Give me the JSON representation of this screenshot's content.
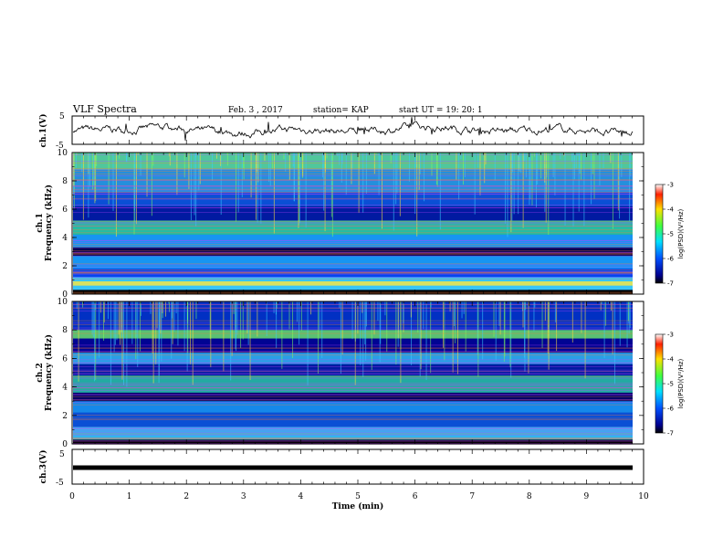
{
  "header": {
    "title": "VLF Spectra",
    "date": "Feb. 3 , 2017",
    "station": "station= KAP",
    "start": "start UT = 19: 20: 1"
  },
  "chart_data": [
    {
      "type": "line",
      "panel": "ch1-waveform",
      "ylabel": "ch.1(V)",
      "ylim": [
        -5,
        5
      ],
      "yticks": [
        "5",
        "-5"
      ],
      "xlim": [
        0,
        10
      ],
      "series_desc": "noisy waveform near 0 V"
    },
    {
      "type": "heatmap",
      "panel": "ch1-spectrogram",
      "ylabel_line1": "ch.1",
      "ylabel_line2": "Frequency (kHz)",
      "ylim": [
        0,
        10
      ],
      "yticks": [
        "0",
        "2",
        "4",
        "6",
        "8",
        "10"
      ],
      "xlim": [
        0,
        10
      ],
      "colorbar": {
        "label": "log(PSD)(V²/Hz)",
        "range": [
          -7,
          -3
        ],
        "ticks": [
          "-3",
          "-4",
          "-5",
          "-6",
          "-7"
        ]
      }
    },
    {
      "type": "heatmap",
      "panel": "ch2-spectrogram",
      "ylabel_line1": "ch.2",
      "ylabel_line2": "Frequency (kHz)",
      "ylim": [
        0,
        10
      ],
      "yticks": [
        "0",
        "2",
        "4",
        "6",
        "8",
        "10"
      ],
      "xlim": [
        0,
        10
      ],
      "colorbar": {
        "label": "log(PSD)(V²/Hz)",
        "range": [
          -7,
          -3
        ],
        "ticks": [
          "-3",
          "-4",
          "-5",
          "-6",
          "-7"
        ]
      }
    },
    {
      "type": "line",
      "panel": "ch3-waveform",
      "ylabel": "ch.3(V)",
      "ylim": [
        -5,
        5
      ],
      "yticks": [
        "5",
        "-5"
      ],
      "xlim": [
        0,
        10
      ],
      "series_desc": "flat line at about -1.6 V"
    }
  ],
  "xaxis": {
    "label": "Time (min)",
    "ticks": [
      "0",
      "1",
      "2",
      "3",
      "4",
      "5",
      "6",
      "7",
      "8",
      "9",
      "10"
    ],
    "range": [
      0,
      10
    ]
  }
}
